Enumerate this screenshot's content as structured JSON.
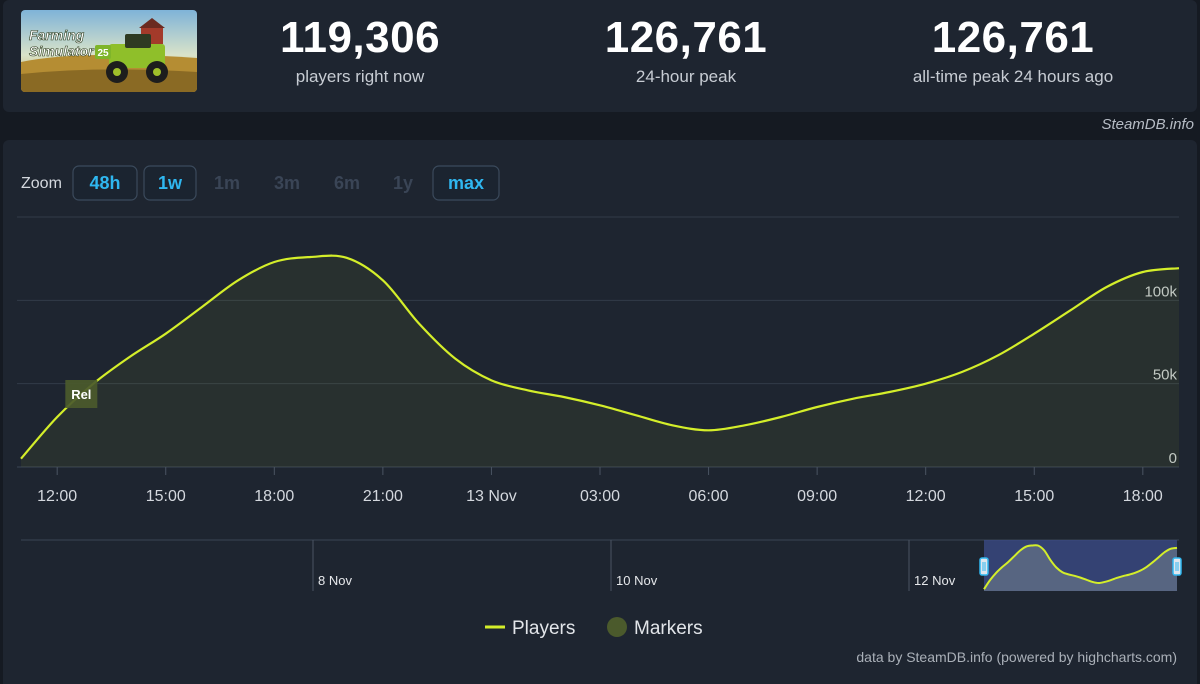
{
  "stats": [
    {
      "value": "119,306",
      "label": "players right now"
    },
    {
      "value": "126,761",
      "label": "24-hour peak"
    },
    {
      "value": "126,761",
      "label": "all-time peak 24 hours ago"
    }
  ],
  "game_cover": {
    "logo_line1": "Farming",
    "logo_line2": "Simulator",
    "logo_badge": "25"
  },
  "credit_top": "SteamDB.info",
  "zoom": {
    "label": "Zoom",
    "buttons": [
      {
        "label": "48h",
        "state": "enabled"
      },
      {
        "label": "1w",
        "state": "enabled"
      },
      {
        "label": "1m",
        "state": "disabled"
      },
      {
        "label": "3m",
        "state": "disabled"
      },
      {
        "label": "6m",
        "state": "disabled"
      },
      {
        "label": "1y",
        "state": "disabled"
      },
      {
        "label": "max",
        "state": "enabled"
      }
    ]
  },
  "chart_data": {
    "type": "line",
    "series": [
      {
        "name": "Players",
        "color": "#d4ee2a",
        "points": [
          [
            "12 Nov 11:00",
            5000
          ],
          [
            "12 Nov 12:00",
            30000
          ],
          [
            "12 Nov 13:00",
            50000
          ],
          [
            "12 Nov 14:00",
            66000
          ],
          [
            "12 Nov 15:00",
            80000
          ],
          [
            "12 Nov 16:00",
            96000
          ],
          [
            "12 Nov 17:00",
            112000
          ],
          [
            "12 Nov 18:00",
            123000
          ],
          [
            "12 Nov 19:00",
            126000
          ],
          [
            "12 Nov 20:00",
            125500
          ],
          [
            "12 Nov 21:00",
            112000
          ],
          [
            "12 Nov 22:00",
            86000
          ],
          [
            "12 Nov 23:00",
            65000
          ],
          [
            "13 Nov 00:00",
            52000
          ],
          [
            "13 Nov 01:00",
            46000
          ],
          [
            "13 Nov 02:00",
            42000
          ],
          [
            "13 Nov 03:00",
            37000
          ],
          [
            "13 Nov 04:00",
            31000
          ],
          [
            "13 Nov 05:00",
            25000
          ],
          [
            "13 Nov 06:00",
            22000
          ],
          [
            "13 Nov 07:00",
            25000
          ],
          [
            "13 Nov 08:00",
            30000
          ],
          [
            "13 Nov 09:00",
            36000
          ],
          [
            "13 Nov 10:00",
            41000
          ],
          [
            "13 Nov 11:00",
            45000
          ],
          [
            "13 Nov 12:00",
            50000
          ],
          [
            "13 Nov 13:00",
            57000
          ],
          [
            "13 Nov 14:00",
            67000
          ],
          [
            "13 Nov 15:00",
            80000
          ],
          [
            "13 Nov 16:00",
            94000
          ],
          [
            "13 Nov 17:00",
            108000
          ],
          [
            "13 Nov 18:00",
            117000
          ],
          [
            "13 Nov 19:00",
            119306
          ]
        ]
      }
    ],
    "markers": [
      {
        "x": "12 Nov 12:40",
        "label": "Rel"
      }
    ],
    "x_ticks": [
      "12:00",
      "15:00",
      "18:00",
      "21:00",
      "13 Nov",
      "03:00",
      "06:00",
      "09:00",
      "12:00",
      "15:00",
      "18:00"
    ],
    "y_ticks": [
      "0",
      "50k",
      "100k"
    ],
    "ylim": [
      0,
      150000
    ],
    "xlim": [
      "12 Nov 11:00",
      "13 Nov 19:00"
    ],
    "navigator": {
      "labels": [
        "8 Nov",
        "10 Nov",
        "12 Nov"
      ],
      "selection": "12 Nov 11:00 – 13 Nov 19:00"
    },
    "legend": {
      "placement": "bottom-center",
      "items": [
        {
          "label": "Players",
          "color": "#d4ee2a",
          "symbol": "line"
        },
        {
          "label": "Markers",
          "color": "#4b5a2c",
          "symbol": "circle"
        }
      ]
    }
  },
  "credit_bottom": "data by SteamDB.info (powered by highcharts.com)"
}
